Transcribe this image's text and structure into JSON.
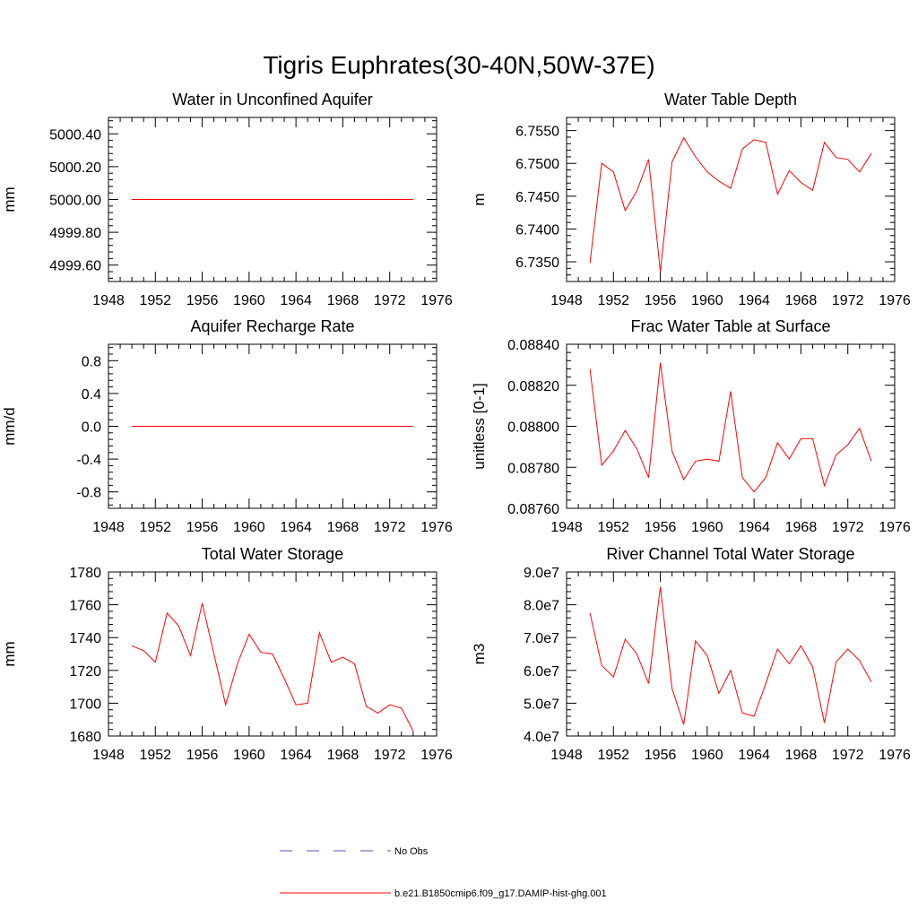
{
  "figure": {
    "title": "Tigris Euphrates(30-40N,50W-37E)"
  },
  "legend": {
    "entries": [
      {
        "label": "No Obs",
        "color": "#5050c8",
        "style": "dashed"
      },
      {
        "label": "b.e21.B1850cmip6.f09_g17.DAMIP-hist-ghg.001",
        "color": "#ff0000",
        "style": "solid"
      }
    ]
  },
  "chart_data": [
    {
      "type": "line",
      "title": "Water in Unconfined Aquifer",
      "ylabel": "mm",
      "xlim": [
        1948,
        1976
      ],
      "ylim": [
        4999.5,
        5000.5
      ],
      "x_ticks": [
        1948,
        1952,
        1956,
        1960,
        1964,
        1968,
        1972,
        1976
      ],
      "x_tick_labels": [
        "1948",
        "1952",
        "1956",
        "1960",
        "1964",
        "1968",
        "1972",
        "1976"
      ],
      "y_ticks": [
        4999.6,
        4999.8,
        5000.0,
        5000.2,
        5000.4
      ],
      "y_tick_labels": [
        "4999.60",
        "4999.80",
        "5000.00",
        "5000.20",
        "5000.40"
      ],
      "x": [
        1950,
        1951,
        1952,
        1953,
        1954,
        1955,
        1956,
        1957,
        1958,
        1959,
        1960,
        1961,
        1962,
        1963,
        1964,
        1965,
        1966,
        1967,
        1968,
        1969,
        1970,
        1971,
        1972,
        1973,
        1974
      ],
      "values": [
        5000,
        5000,
        5000,
        5000,
        5000,
        5000,
        5000,
        5000,
        5000,
        5000,
        5000,
        5000,
        5000,
        5000,
        5000,
        5000,
        5000,
        5000,
        5000,
        5000,
        5000,
        5000,
        5000,
        5000,
        5000
      ],
      "color": "#ff0000"
    },
    {
      "type": "line",
      "title": "Water Table Depth",
      "ylabel": "m",
      "xlim": [
        1948,
        1976
      ],
      "ylim": [
        6.732,
        6.757
      ],
      "x_ticks": [
        1948,
        1952,
        1956,
        1960,
        1964,
        1968,
        1972,
        1976
      ],
      "x_tick_labels": [
        "1948",
        "1952",
        "1956",
        "1960",
        "1964",
        "1968",
        "1972",
        "1976"
      ],
      "y_ticks": [
        6.735,
        6.74,
        6.745,
        6.75,
        6.755
      ],
      "y_tick_labels": [
        "6.7350",
        "6.7400",
        "6.7450",
        "6.7500",
        "6.7550"
      ],
      "x": [
        1950,
        1951,
        1952,
        1953,
        1954,
        1955,
        1956,
        1957,
        1958,
        1959,
        1960,
        1961,
        1962,
        1963,
        1964,
        1965,
        1966,
        1967,
        1968,
        1969,
        1970,
        1971,
        1972,
        1973,
        1974
      ],
      "values": [
        6.7348,
        6.75,
        6.7487,
        6.7428,
        6.7458,
        6.7506,
        6.7335,
        6.7502,
        6.7539,
        6.751,
        6.7487,
        6.7473,
        6.7462,
        6.7522,
        6.7536,
        6.7532,
        6.7453,
        6.7489,
        6.7471,
        6.7459,
        6.7532,
        6.7509,
        6.7506,
        6.7487,
        6.7515
      ],
      "color": "#ff0000"
    },
    {
      "type": "line",
      "title": "Aquifer Recharge Rate",
      "ylabel": "mm/d",
      "xlim": [
        1948,
        1976
      ],
      "ylim": [
        -1.0,
        1.0
      ],
      "x_ticks": [
        1948,
        1952,
        1956,
        1960,
        1964,
        1968,
        1972,
        1976
      ],
      "x_tick_labels": [
        "1948",
        "1952",
        "1956",
        "1960",
        "1964",
        "1968",
        "1972",
        "1976"
      ],
      "y_ticks": [
        -0.8,
        -0.4,
        0.0,
        0.4,
        0.8
      ],
      "y_tick_labels": [
        "-0.8",
        "-0.4",
        "0.0",
        "0.4",
        "0.8"
      ],
      "x": [
        1950,
        1951,
        1952,
        1953,
        1954,
        1955,
        1956,
        1957,
        1958,
        1959,
        1960,
        1961,
        1962,
        1963,
        1964,
        1965,
        1966,
        1967,
        1968,
        1969,
        1970,
        1971,
        1972,
        1973,
        1974
      ],
      "values": [
        0,
        0,
        0,
        0,
        0,
        0,
        0,
        0,
        0,
        0,
        0,
        0,
        0,
        0,
        0,
        0,
        0,
        0,
        0,
        0,
        0,
        0,
        0,
        0,
        0
      ],
      "color": "#ff0000"
    },
    {
      "type": "line",
      "title": "Frac Water Table at Surface",
      "ylabel": "unitless [0-1]",
      "xlim": [
        1948,
        1976
      ],
      "ylim": [
        0.0876,
        0.0884
      ],
      "x_ticks": [
        1948,
        1952,
        1956,
        1960,
        1964,
        1968,
        1972,
        1976
      ],
      "x_tick_labels": [
        "1948",
        "1952",
        "1956",
        "1960",
        "1964",
        "1968",
        "1972",
        "1976"
      ],
      "y_ticks": [
        0.0876,
        0.0878,
        0.088,
        0.0882,
        0.0884
      ],
      "y_tick_labels": [
        "0.08760",
        "0.08780",
        "0.08800",
        "0.08820",
        "0.08840"
      ],
      "x": [
        1950,
        1951,
        1952,
        1953,
        1954,
        1955,
        1956,
        1957,
        1958,
        1959,
        1960,
        1961,
        1962,
        1963,
        1964,
        1965,
        1966,
        1967,
        1968,
        1969,
        1970,
        1971,
        1972,
        1973,
        1974
      ],
      "values": [
        0.08828,
        0.08781,
        0.08788,
        0.08798,
        0.08789,
        0.08775,
        0.08831,
        0.08788,
        0.08774,
        0.08783,
        0.08784,
        0.08783,
        0.08817,
        0.08775,
        0.08768,
        0.08775,
        0.08792,
        0.08784,
        0.08794,
        0.08794,
        0.08771,
        0.08786,
        0.08791,
        0.08799,
        0.08783
      ],
      "color": "#ff0000"
    },
    {
      "type": "line",
      "title": "Total Water Storage",
      "ylabel": "mm",
      "xlim": [
        1948,
        1976
      ],
      "ylim": [
        1680,
        1780
      ],
      "x_ticks": [
        1948,
        1952,
        1956,
        1960,
        1964,
        1968,
        1972,
        1976
      ],
      "x_tick_labels": [
        "1948",
        "1952",
        "1956",
        "1960",
        "1964",
        "1968",
        "1972",
        "1976"
      ],
      "y_ticks": [
        1680,
        1700,
        1720,
        1740,
        1760,
        1780
      ],
      "y_tick_labels": [
        "1680",
        "1700",
        "1720",
        "1740",
        "1760",
        "1780"
      ],
      "x": [
        1950,
        1951,
        1952,
        1953,
        1954,
        1955,
        1956,
        1957,
        1958,
        1959,
        1960,
        1961,
        1962,
        1963,
        1964,
        1965,
        1966,
        1967,
        1968,
        1969,
        1970,
        1971,
        1972,
        1973,
        1974
      ],
      "values": [
        1735,
        1732,
        1725,
        1755,
        1747,
        1729,
        1761,
        1730,
        1699,
        1724,
        1742,
        1731,
        1730,
        1715,
        1699,
        1700,
        1743,
        1725,
        1728,
        1724,
        1698,
        1694,
        1699,
        1697,
        1683
      ],
      "color": "#ff0000"
    },
    {
      "type": "line",
      "title": "River Channel Total Water Storage",
      "ylabel": "m3",
      "xlim": [
        1948,
        1976
      ],
      "ylim": [
        40000000,
        90000000
      ],
      "x_ticks": [
        1948,
        1952,
        1956,
        1960,
        1964,
        1968,
        1972,
        1976
      ],
      "x_tick_labels": [
        "1948",
        "1952",
        "1956",
        "1960",
        "1964",
        "1968",
        "1972",
        "1976"
      ],
      "y_ticks": [
        40000000,
        50000000,
        60000000,
        70000000,
        80000000,
        90000000
      ],
      "y_tick_labels": [
        "4.0e7",
        "5.0e7",
        "6.0e7",
        "7.0e7",
        "8.0e7",
        "9.0e7"
      ],
      "x": [
        1950,
        1951,
        1952,
        1953,
        1954,
        1955,
        1956,
        1957,
        1958,
        1959,
        1960,
        1961,
        1962,
        1963,
        1964,
        1965,
        1966,
        1967,
        1968,
        1969,
        1970,
        1971,
        1972,
        1973,
        1974
      ],
      "values": [
        77500000,
        61500000,
        58000000,
        69500000,
        65000000,
        56000000,
        85500000,
        54500000,
        43500000,
        69000000,
        64500000,
        53000000,
        60000000,
        47000000,
        46000000,
        56000000,
        66500000,
        62000000,
        67500000,
        61000000,
        44000000,
        62500000,
        66500000,
        63000000,
        56500000
      ],
      "color": "#ff0000"
    }
  ]
}
